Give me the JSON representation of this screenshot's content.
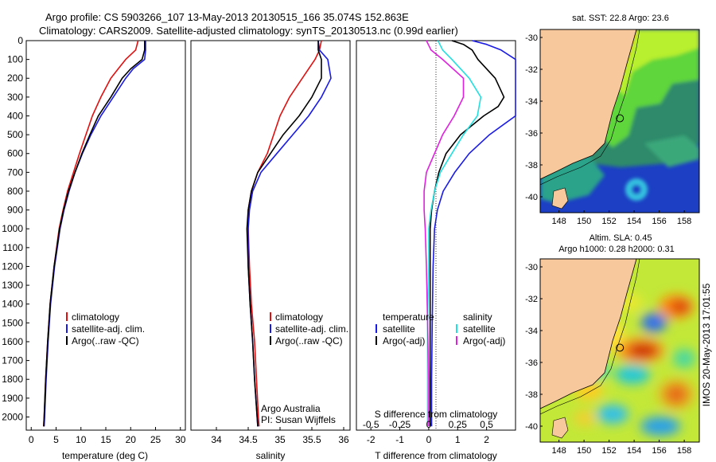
{
  "header": {
    "line1": "Argo profile: CS 5903266_107 13-May-2013 20130515_166 35.074S 152.863E",
    "line2": "Climatology: CARS2009. Satellite-adjusted climatology: synTS_20130513.nc (0.99d earlier)"
  },
  "colors": {
    "climatology": "#e01010",
    "satellite": "#1a1ae6",
    "argo": "#000000",
    "salinity_satellite": "#22e0e0",
    "salinity_argo": "#e020e0",
    "land": "#f7c89b"
  },
  "chart_data": [
    {
      "type": "line",
      "name": "temperature-profile",
      "xlabel": "temperature (deg C)",
      "ylabel": "",
      "xlim": [
        -1,
        31
      ],
      "ylim": [
        2070,
        0
      ],
      "y_reversed": true,
      "xticks": [
        0,
        5,
        10,
        15,
        20,
        25,
        30
      ],
      "yticks": [
        0,
        100,
        200,
        300,
        400,
        500,
        600,
        700,
        800,
        900,
        1000,
        1100,
        1200,
        1300,
        1400,
        1500,
        1600,
        1700,
        1800,
        1900,
        2000
      ],
      "legend": {
        "position": "lower-right",
        "entries": [
          "climatology",
          "satellite-adj. clim.",
          "Argo(..raw -QC)"
        ]
      },
      "series": [
        {
          "name": "climatology",
          "color": "#e01010",
          "depth": [
            0,
            50,
            100,
            150,
            200,
            300,
            400,
            500,
            600,
            700,
            800,
            900,
            1000,
            1200,
            1400,
            1600,
            1800,
            2000,
            2050
          ],
          "values": [
            21.5,
            21,
            19,
            17.5,
            16,
            14,
            12.3,
            11,
            9.7,
            8.5,
            7.3,
            6.4,
            5.6,
            4.6,
            3.8,
            3.3,
            2.9,
            2.6,
            2.5
          ]
        },
        {
          "name": "satellite-adj. clim.",
          "color": "#1a1ae6",
          "depth": [
            0,
            50,
            100,
            150,
            200,
            300,
            400,
            500,
            600,
            700,
            800,
            900,
            1000,
            1200,
            1400,
            1600,
            1800,
            2000,
            2050
          ],
          "values": [
            23,
            23,
            22.8,
            20.5,
            19,
            16.5,
            14,
            12,
            10.3,
            8.8,
            7.6,
            6.6,
            5.8,
            4.7,
            3.9,
            3.4,
            3,
            2.7,
            2.6
          ]
        },
        {
          "name": "Argo(..raw -QC)",
          "color": "#000000",
          "depth": [
            0,
            50,
            100,
            150,
            200,
            300,
            400,
            500,
            600,
            700,
            800,
            900,
            1000,
            1200,
            1400,
            1600,
            1800,
            2000,
            2050
          ],
          "values": [
            22.8,
            22.8,
            22.3,
            20,
            18.3,
            16,
            13.5,
            11.8,
            10.2,
            8.8,
            7.5,
            6.5,
            5.7,
            4.6,
            3.8,
            3.3,
            2.9,
            2.6,
            2.5
          ]
        }
      ]
    },
    {
      "type": "line",
      "name": "salinity-profile",
      "xlabel": "salinity",
      "ylabel": "",
      "xlim": [
        33.6,
        36.1
      ],
      "ylim": [
        2070,
        0
      ],
      "y_reversed": true,
      "xticks": [
        34,
        34.5,
        35,
        35.5,
        36
      ],
      "legend": {
        "position": "lower-right",
        "entries": [
          "climatology",
          "satellite-adj. clim.",
          "Argo(..raw -QC)"
        ]
      },
      "annotations": [
        "Argo Australia",
        "PI: Susan Wijffels"
      ],
      "series": [
        {
          "name": "climatology",
          "color": "#e01010",
          "depth": [
            0,
            50,
            100,
            200,
            300,
            400,
            500,
            600,
            700,
            800,
            900,
            1000,
            1200,
            1400,
            1600,
            1800,
            2000,
            2050
          ],
          "values": [
            35.65,
            35.62,
            35.55,
            35.35,
            35.15,
            35,
            34.9,
            34.8,
            34.65,
            34.55,
            34.5,
            34.5,
            34.52,
            34.55,
            34.6,
            34.63,
            34.66,
            34.67
          ]
        },
        {
          "name": "satellite-adj. clim.",
          "color": "#1a1ae6",
          "depth": [
            0,
            50,
            100,
            200,
            300,
            400,
            500,
            600,
            700,
            800,
            900,
            1000,
            1200,
            1400,
            1600,
            1800,
            2000,
            2050
          ],
          "values": [
            35.6,
            35.62,
            35.75,
            35.8,
            35.65,
            35.45,
            35.2,
            34.95,
            34.7,
            34.57,
            34.52,
            34.5,
            34.5,
            34.53,
            34.57,
            34.6,
            34.64,
            34.65
          ]
        },
        {
          "name": "Argo(..raw -QC)",
          "color": "#000000",
          "depth": [
            0,
            50,
            100,
            200,
            300,
            400,
            500,
            600,
            700,
            800,
            900,
            1000,
            1200,
            1400,
            1600,
            1800,
            2000,
            2050
          ],
          "values": [
            35.6,
            35.6,
            35.65,
            35.65,
            35.5,
            35.3,
            35.05,
            34.85,
            34.65,
            34.55,
            34.5,
            34.48,
            34.5,
            34.53,
            34.57,
            34.6,
            34.64,
            34.65
          ]
        }
      ]
    },
    {
      "type": "line",
      "name": "difference-profile",
      "xlabel": "T difference from climatology",
      "xlabel_top": "S difference from climatology",
      "xlim": [
        -2.5,
        3
      ],
      "ylim": [
        2070,
        0
      ],
      "y_reversed": true,
      "xticks": [
        -2,
        -1,
        0,
        1,
        2
      ],
      "xticks_salinity": [
        -0.5,
        -0.25,
        0,
        0.25,
        0.5
      ],
      "legend_left": {
        "title": "temperature",
        "entries": [
          "satellite",
          "Argo(-adj)"
        ]
      },
      "legend_right": {
        "title": "salinity",
        "entries": [
          "satellite",
          "Argo(-adj)"
        ]
      },
      "series": [
        {
          "name": "temperature satellite",
          "color": "#1a1ae6",
          "depth": [
            0,
            20,
            50,
            100,
            200,
            300,
            400,
            500,
            600,
            700,
            800,
            900,
            1000,
            1200,
            1500,
            1800,
            2000,
            2050
          ],
          "values": [
            1.5,
            2,
            2.5,
            3,
            3,
            3,
            3,
            2.1,
            1.4,
            0.9,
            0.5,
            0.3,
            0.2,
            0.15,
            0.12,
            0.1,
            0.1,
            0.1
          ]
        },
        {
          "name": "temperature Argo(-adj)",
          "color": "#000000",
          "depth": [
            0,
            20,
            50,
            100,
            200,
            300,
            350,
            400,
            500,
            600,
            700,
            800,
            900,
            1000,
            1200,
            1500,
            1800,
            2000,
            2050
          ],
          "values": [
            0.8,
            1.2,
            1.5,
            1.7,
            2.3,
            2.6,
            2.4,
            1.9,
            1.1,
            0.6,
            0.35,
            0.2,
            0.1,
            0.05,
            0.05,
            0.05,
            0.05,
            0.05,
            0.05
          ]
        },
        {
          "name": "salinity satellite",
          "color": "#22e0e0",
          "depth": [
            0,
            50,
            100,
            200,
            300,
            400,
            500,
            600,
            700,
            800,
            900,
            1000,
            1200,
            1500,
            1800,
            2000,
            2050
          ],
          "values": [
            0.08,
            0.12,
            0.2,
            0.35,
            0.45,
            0.42,
            0.3,
            0.2,
            0.1,
            0.05,
            0.02,
            0,
            0,
            -0.01,
            -0.01,
            -0.01,
            -0.01
          ]
        },
        {
          "name": "salinity Argo(-adj)",
          "color": "#e020e0",
          "depth": [
            0,
            50,
            100,
            200,
            300,
            400,
            500,
            600,
            700,
            800,
            900,
            1000,
            1200,
            1500,
            1800,
            2000,
            2050
          ],
          "values": [
            -0.02,
            0.02,
            0.12,
            0.3,
            0.3,
            0.22,
            0.12,
            0.05,
            -0.02,
            -0.04,
            -0.04,
            -0.03,
            -0.02,
            -0.01,
            0,
            0,
            0
          ]
        }
      ]
    },
    {
      "type": "heatmap",
      "name": "sst-map",
      "title": "sat. SST: 22.8 Argo: 23.6",
      "xticks": [
        148,
        150,
        152,
        154,
        156,
        158
      ],
      "yticks": [
        -30,
        -32,
        -34,
        -36,
        -38,
        -40
      ],
      "xlim": [
        146.5,
        159.2
      ],
      "ylim": [
        -41,
        -29.5
      ],
      "marker": {
        "lon": 152.863,
        "lat": -35.074
      }
    },
    {
      "type": "heatmap",
      "name": "sla-map",
      "title": "Altim. SLA: 0.45",
      "subtitle": "Argo h1000: 0.28 h2000: 0.31",
      "xticks": [
        148,
        150,
        152,
        154,
        156,
        158
      ],
      "yticks": [
        -30,
        -32,
        -34,
        -36,
        -38,
        -40
      ],
      "xlim": [
        146.5,
        159.2
      ],
      "ylim": [
        -41,
        -29.5
      ],
      "marker": {
        "lon": 152.863,
        "lat": -35.074
      }
    }
  ],
  "legend": {
    "climatology": "climatology",
    "satellite_adj": "satellite-adj. clim.",
    "argo_raw": "Argo(..raw -QC)",
    "temperature": "temperature",
    "salinity": "salinity",
    "satellite": "satellite",
    "argo_adj": "Argo(-adj)"
  },
  "credits": {
    "org": "Argo Australia",
    "pi": "PI: Susan Wijffels",
    "imos": "IMOS 20-May-2013 17:01:55"
  }
}
